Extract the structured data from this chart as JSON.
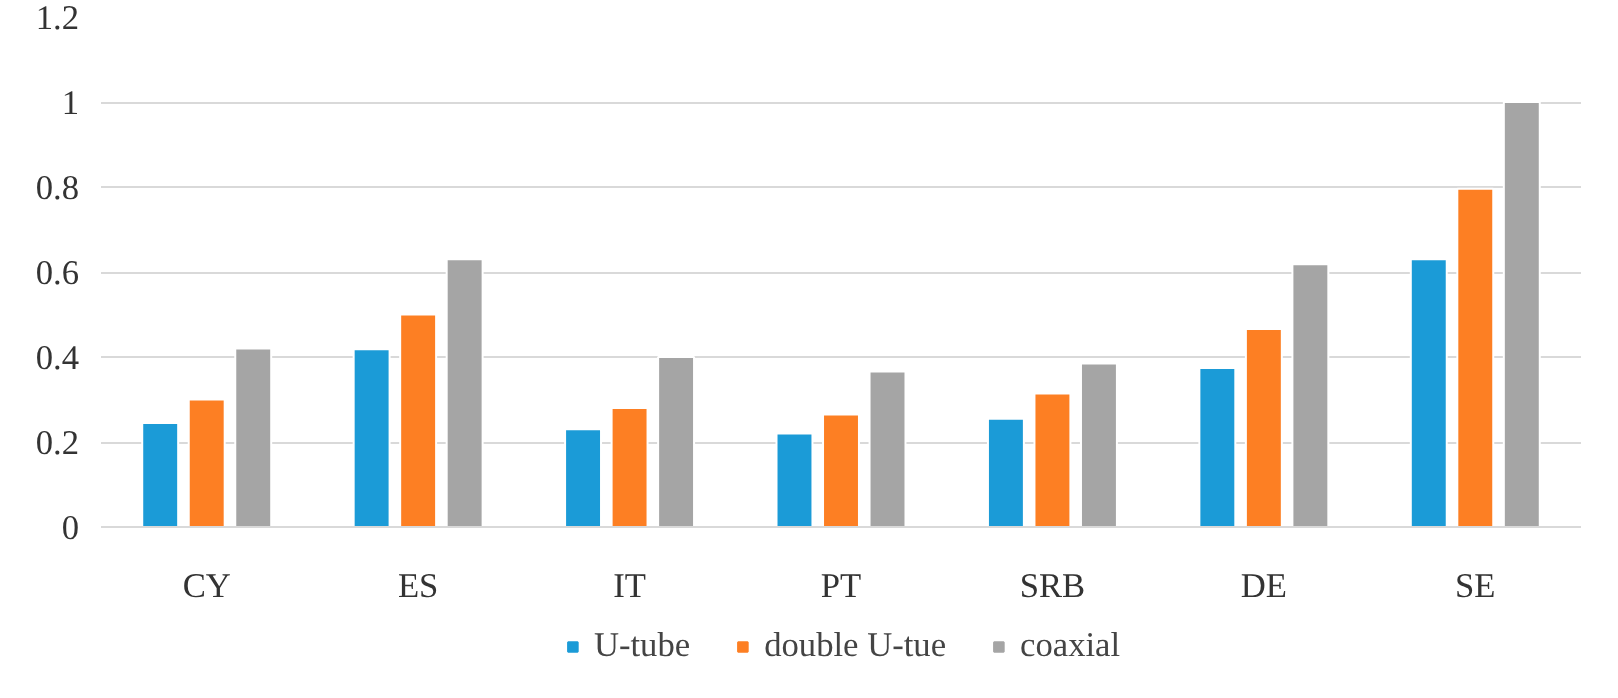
{
  "chart_data": {
    "type": "bar",
    "categories": [
      "CY",
      "ES",
      "IT",
      "PT",
      "SRB",
      "DE",
      "SE"
    ],
    "series": [
      {
        "name": "U-tube",
        "color": "#1b9bd7",
        "values": [
          0.245,
          0.418,
          0.23,
          0.22,
          0.255,
          0.374,
          0.63
        ]
      },
      {
        "name": "double U-tue",
        "color": "#fd7f23",
        "values": [
          0.3,
          0.5,
          0.28,
          0.265,
          0.314,
          0.466,
          0.796
        ]
      },
      {
        "name": "coaxial",
        "color": "#a5a5a5",
        "values": [
          0.42,
          0.63,
          0.4,
          0.366,
          0.385,
          0.618,
          1.0
        ]
      }
    ],
    "ylim": [
      0,
      1.2
    ],
    "yticks": [
      0,
      0.2,
      0.4,
      0.6,
      0.8,
      1,
      1.2
    ],
    "grid": "y",
    "legend": "bottom"
  }
}
